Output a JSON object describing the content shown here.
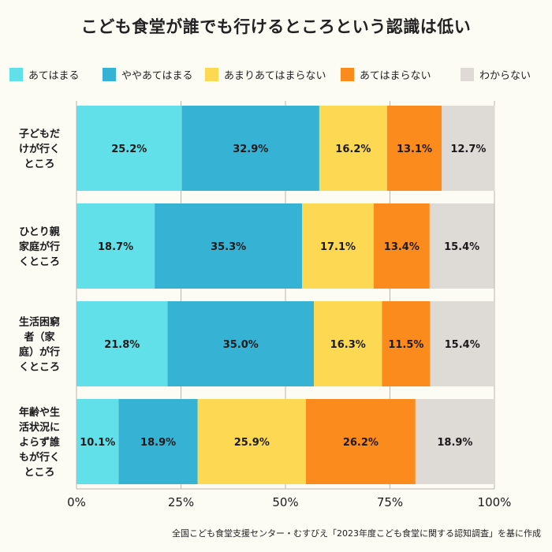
{
  "title": "こども食堂が誰でも行けるところという認識は低い",
  "source": "全国こども食堂支援センター・むすびえ「2023年度こども食堂に関する認知調査」を基に作成",
  "chart_data": {
    "type": "bar",
    "orientation": "horizontal",
    "stacked": true,
    "title": "こども食堂が誰でも行けるところという認識は低い",
    "xlim": [
      0,
      100
    ],
    "x_ticks": [
      "0%",
      "25%",
      "50%",
      "75%",
      "100%"
    ],
    "grid": true,
    "legend_position": "top",
    "categories": [
      [
        "子どもだ",
        "けが行く",
        "ところ"
      ],
      [
        "ひとり親",
        "家庭が行",
        "くところ"
      ],
      [
        "生活困窮",
        "者（家",
        "庭）が行",
        "くところ"
      ],
      [
        "年齢や生",
        "活状況に",
        "よらず誰",
        "もが行く",
        "ところ"
      ]
    ],
    "series": [
      {
        "name": "あてはまる",
        "color": "#62e0ea",
        "values": [
          25.2,
          18.7,
          21.8,
          10.1
        ]
      },
      {
        "name": "ややあてはまる",
        "color": "#36b2d5",
        "values": [
          32.9,
          35.3,
          35.0,
          18.9
        ]
      },
      {
        "name": "あまりあてはまらない",
        "color": "#fdd953",
        "values": [
          16.2,
          17.1,
          16.3,
          25.9
        ]
      },
      {
        "name": "あてはまらない",
        "color": "#fc8b1d",
        "values": [
          13.1,
          13.4,
          11.5,
          26.2
        ]
      },
      {
        "name": "わからない",
        "color": "#dedad6",
        "values": [
          12.7,
          15.4,
          15.4,
          18.9
        ]
      }
    ]
  }
}
